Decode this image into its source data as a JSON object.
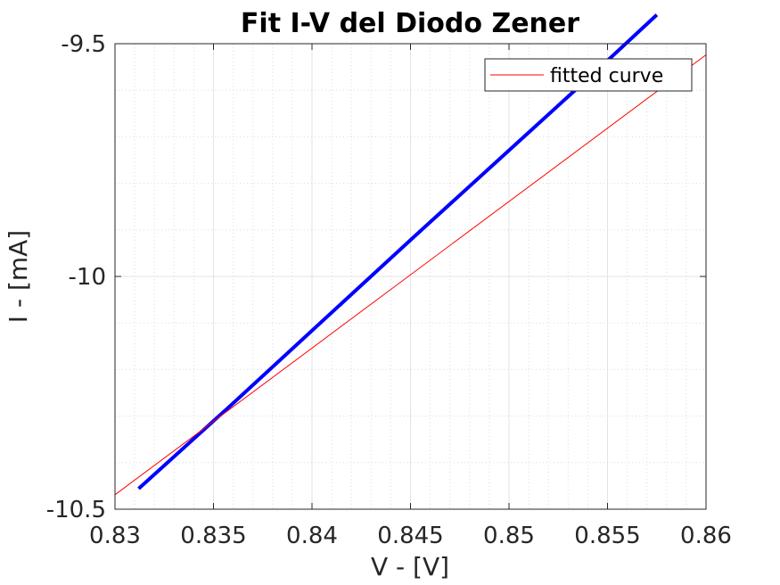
{
  "chart_data": {
    "type": "line",
    "title": "Fit I-V del Diodo Zener",
    "xlabel": "V - [V]",
    "ylabel": "I - [mA]",
    "xlim": [
      0.83,
      0.86
    ],
    "ylim": [
      -10.5,
      -9.5
    ],
    "x_ticks": [
      0.83,
      0.835,
      0.84,
      0.845,
      0.85,
      0.855,
      0.86
    ],
    "x_tick_labels": [
      "0.83",
      "0.835",
      "0.84",
      "0.845",
      "0.85",
      "0.855",
      "0.86"
    ],
    "y_ticks": [
      -10.5,
      -10,
      -9.5
    ],
    "y_tick_labels": [
      "-10.5",
      "-10",
      "-9.5"
    ],
    "grid": true,
    "minor_grid": true,
    "legend_position": "top-right",
    "series": [
      {
        "name": "",
        "kind": "data",
        "color": "#0000ff",
        "x": [
          0.8312,
          0.8359,
          0.8406,
          0.8452,
          0.8499,
          0.8546,
          0.8575
        ],
        "y": [
          -10.456,
          -10.276,
          -10.093,
          -9.914,
          -9.733,
          -9.552,
          -9.438
        ]
      },
      {
        "name": "fitted curve",
        "kind": "fit",
        "color": "#ff0000",
        "x": [
          0.83,
          0.86
        ],
        "y": [
          -10.469,
          -9.524
        ]
      }
    ]
  }
}
